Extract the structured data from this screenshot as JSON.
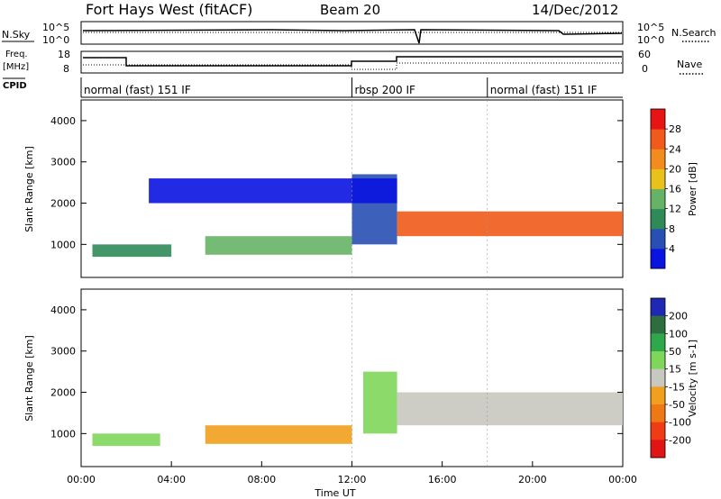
{
  "header": {
    "station": "Fort Hays West (fitACF)",
    "beam": "Beam 20",
    "date": "14/Dec/2012"
  },
  "strip": {
    "nsky_label": "N.Sky",
    "nsearch_label": "N.Search",
    "freq_label_1": "Freq.",
    "freq_label_2": "[MHz]",
    "nave_label": "Nave",
    "cpid_label": "CPID",
    "nsky_ticks": [
      "10^5",
      "10^0"
    ],
    "nsearch_ticks": [
      "10^5",
      "10^0"
    ],
    "freq_ticks": [
      "18",
      "8"
    ],
    "nave_ticks": [
      "60",
      "0"
    ]
  },
  "cpid_segments": [
    {
      "label": "normal (fast) 151 IF",
      "start_h": 0,
      "end_h": 12.0
    },
    {
      "label": "rbsp 200 IF",
      "start_h": 12.0,
      "end_h": 18.0
    },
    {
      "label": "normal (fast) 151 IF",
      "start_h": 18.0,
      "end_h": 24.0
    }
  ],
  "chart_data": [
    {
      "type": "heatmap",
      "title": "Power",
      "xlabel": "",
      "ylabel": "Slant Range [km]",
      "xlim": [
        0,
        24
      ],
      "ylim": [
        200,
        4500
      ],
      "y_ticks": [
        "1000",
        "2000",
        "3000",
        "4000"
      ],
      "colorbar": {
        "label": "Power [dB]",
        "ticks": [
          "4",
          "8",
          "12",
          "16",
          "20",
          "24",
          "28"
        ],
        "colors": [
          "#0a14e0",
          "#2850b4",
          "#2e8b57",
          "#66b266",
          "#e8c21a",
          "#f28c1e",
          "#f05a1a",
          "#e81414"
        ]
      },
      "bands": [
        {
          "start_h": 0.5,
          "end_h": 4.0,
          "range_km": [
            700,
            1000
          ],
          "level_db": 10
        },
        {
          "start_h": 5.5,
          "end_h": 12.0,
          "range_km": [
            750,
            1200
          ],
          "level_db": 14
        },
        {
          "start_h": 12.0,
          "end_h": 14.0,
          "range_km": [
            1000,
            2700
          ],
          "level_db": 8
        },
        {
          "start_h": 14.0,
          "end_h": 24.0,
          "range_km": [
            1200,
            1800
          ],
          "level_db": 24
        },
        {
          "start_h": 3.0,
          "end_h": 14.0,
          "range_km": [
            2000,
            2600
          ],
          "level_db": 5
        }
      ]
    },
    {
      "type": "heatmap",
      "title": "Velocity",
      "xlabel": "Time UT",
      "ylabel": "Slant Range [km]",
      "xlim": [
        0,
        24
      ],
      "ylim": [
        200,
        4500
      ],
      "y_ticks": [
        "1000",
        "2000",
        "3000",
        "4000"
      ],
      "x_ticks": [
        "00:00",
        "04:00",
        "08:00",
        "12:00",
        "16:00",
        "20:00",
        "00:00"
      ],
      "colorbar": {
        "label": "Velocity [m s-1]",
        "ticks": [
          "200",
          "100",
          "50",
          "15",
          "-15",
          "-50",
          "-100",
          "-200"
        ],
        "colors": [
          "#1e28b4",
          "#2e6e3e",
          "#2ea84a",
          "#7ed65a",
          "#c8c8c0",
          "#f0a01e",
          "#f07814",
          "#f03c14",
          "#e01414"
        ]
      },
      "bands": [
        {
          "start_h": 0.5,
          "end_h": 3.5,
          "range_km": [
            700,
            1000
          ],
          "velocity_ms": 30
        },
        {
          "start_h": 5.5,
          "end_h": 12.0,
          "range_km": [
            750,
            1200
          ],
          "velocity_ms": -40
        },
        {
          "start_h": 12.5,
          "end_h": 14.0,
          "range_km": [
            1000,
            2500
          ],
          "velocity_ms": 40
        },
        {
          "start_h": 14.0,
          "end_h": 24.0,
          "range_km": [
            1200,
            2000
          ],
          "velocity_ms": 0
        }
      ]
    }
  ],
  "colors": {
    "text": "#000000",
    "frame": "#000000",
    "panel_bg": "#ffffff"
  }
}
